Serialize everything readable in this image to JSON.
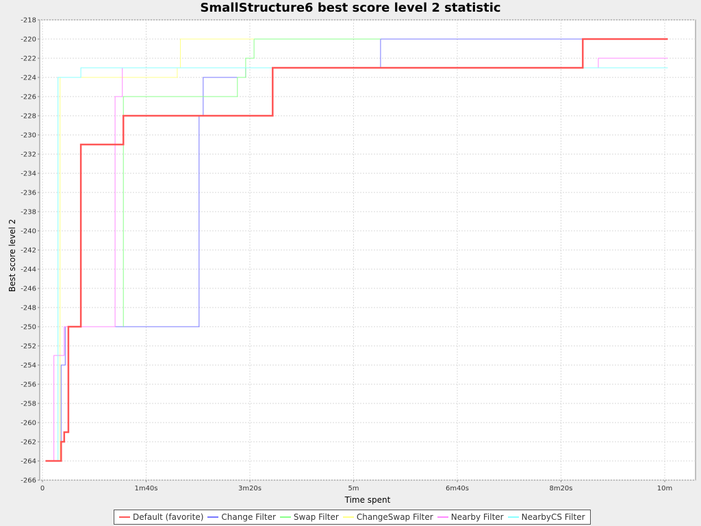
{
  "chart_data": {
    "type": "line",
    "step": true,
    "title": "SmallStructure6 best score level 2 statistic",
    "xlabel": "Time spent",
    "ylabel": "Best score level 2",
    "xlim": [
      0,
      630
    ],
    "ylim": [
      -266,
      -218
    ],
    "x_unit": "seconds",
    "x_ticks": [
      {
        "value": 0,
        "label": "0"
      },
      {
        "value": 100,
        "label": "1m40s"
      },
      {
        "value": 200,
        "label": "3m20s"
      },
      {
        "value": 300,
        "label": "5m"
      },
      {
        "value": 400,
        "label": "6m40s"
      },
      {
        "value": 500,
        "label": "8m20s"
      },
      {
        "value": 600,
        "label": "10m"
      }
    ],
    "y_ticks": [
      -218,
      -220,
      -222,
      -224,
      -226,
      -228,
      -230,
      -232,
      -234,
      -236,
      -238,
      -240,
      -242,
      -244,
      -246,
      -248,
      -250,
      -252,
      -254,
      -256,
      -258,
      -260,
      -262,
      -264,
      -266
    ],
    "grid": true,
    "legend_position": "bottom",
    "series": [
      {
        "name": "Default (favorite)",
        "color": "#ff5555",
        "width": 2.5,
        "points": [
          [
            3,
            -264
          ],
          [
            18,
            -264
          ],
          [
            18,
            -262
          ],
          [
            21,
            -262
          ],
          [
            21,
            -261
          ],
          [
            25,
            -261
          ],
          [
            25,
            -250
          ],
          [
            37,
            -250
          ],
          [
            37,
            -231
          ],
          [
            78,
            -231
          ],
          [
            78,
            -228
          ],
          [
            222,
            -228
          ],
          [
            222,
            -223
          ],
          [
            521,
            -223
          ],
          [
            521,
            -220
          ],
          [
            603,
            -220
          ]
        ]
      },
      {
        "name": "Change Filter",
        "color": "#7777ff",
        "width": 1,
        "points": [
          [
            18,
            -264
          ],
          [
            18,
            -254
          ],
          [
            22,
            -254
          ],
          [
            22,
            -250
          ],
          [
            151,
            -250
          ],
          [
            151,
            -228
          ],
          [
            155,
            -228
          ],
          [
            155,
            -224
          ],
          [
            196,
            -224
          ],
          [
            196,
            -223
          ],
          [
            326,
            -223
          ],
          [
            326,
            -220
          ],
          [
            521,
            -220
          ]
        ]
      },
      {
        "name": "Swap Filter",
        "color": "#88ff88",
        "width": 1,
        "points": [
          [
            78,
            -250
          ],
          [
            78,
            -226
          ],
          [
            188,
            -226
          ],
          [
            188,
            -224
          ],
          [
            196,
            -224
          ],
          [
            196,
            -222
          ],
          [
            204,
            -222
          ],
          [
            204,
            -220
          ],
          [
            326,
            -220
          ]
        ]
      },
      {
        "name": "ChangeSwap Filter",
        "color": "#ffff88",
        "width": 1,
        "points": [
          [
            17,
            -264
          ],
          [
            17,
            -224
          ],
          [
            130,
            -224
          ],
          [
            130,
            -223
          ],
          [
            133,
            -223
          ],
          [
            133,
            -220
          ],
          [
            204,
            -220
          ]
        ]
      },
      {
        "name": "Nearby Filter",
        "color": "#ff88ff",
        "width": 1,
        "points": [
          [
            11,
            -264
          ],
          [
            11,
            -253
          ],
          [
            21,
            -253
          ],
          [
            21,
            -250
          ],
          [
            70,
            -250
          ],
          [
            70,
            -226
          ],
          [
            77,
            -226
          ],
          [
            77,
            -223
          ],
          [
            536,
            -223
          ],
          [
            536,
            -222
          ],
          [
            603,
            -222
          ]
        ]
      },
      {
        "name": "NearbyCS Filter",
        "color": "#88ffff",
        "width": 1,
        "points": [
          [
            15,
            -264
          ],
          [
            15,
            -224
          ],
          [
            37,
            -224
          ],
          [
            37,
            -223
          ],
          [
            603,
            -223
          ]
        ]
      }
    ]
  }
}
